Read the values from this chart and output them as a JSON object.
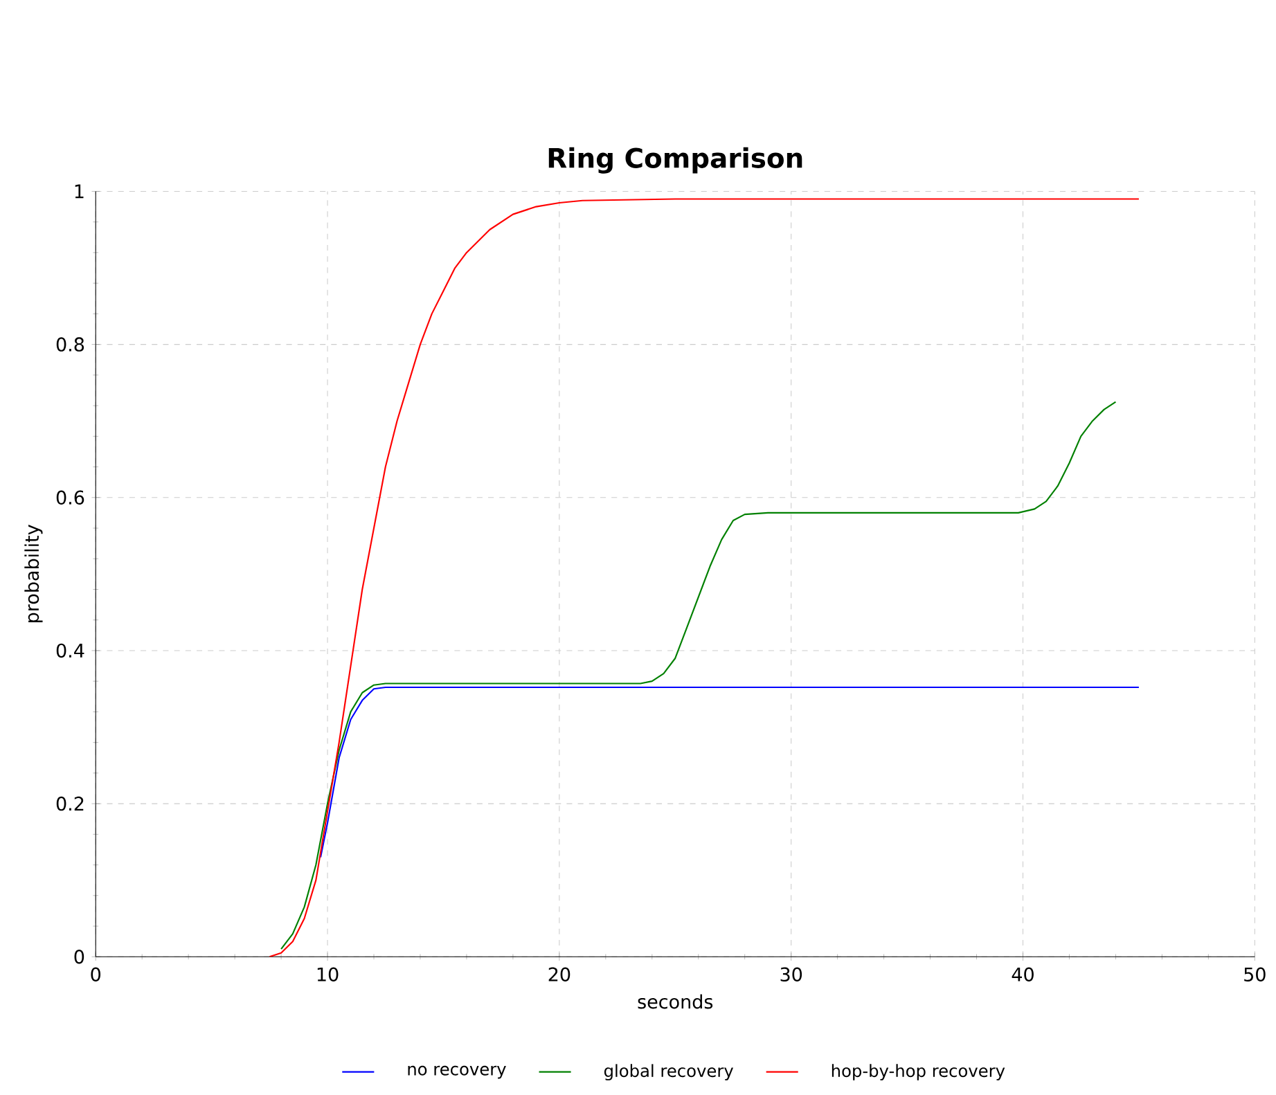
{
  "chart_data": {
    "type": "line",
    "title": "Ring Comparison",
    "xlabel": "seconds",
    "ylabel": "probability",
    "xlim": [
      0,
      50
    ],
    "ylim": [
      0,
      1
    ],
    "xticks": [
      0,
      10,
      20,
      30,
      40,
      50
    ],
    "yticks": [
      0,
      0.2,
      0.4,
      0.6,
      0.8,
      1
    ],
    "grid": true,
    "legend": "bottom",
    "marker": "none",
    "line_style": "solid",
    "series": [
      {
        "name": "no recovery",
        "color": "#0000ff",
        "x": [
          9.7,
          10,
          10.5,
          11,
          11.5,
          12,
          12.5,
          45
        ],
        "values": [
          0.13,
          0.175,
          0.26,
          0.31,
          0.335,
          0.35,
          0.352,
          0.352
        ]
      },
      {
        "name": "global recovery",
        "color": "#008000",
        "x": [
          8,
          8.5,
          9,
          9.5,
          10,
          10.5,
          11,
          11.5,
          12,
          12.5,
          23.5,
          24,
          24.5,
          25,
          25.5,
          26,
          26.5,
          27,
          27.5,
          28,
          29,
          39.8,
          40.5,
          41,
          41.5,
          42,
          42.5,
          43,
          43.5,
          44
        ],
        "values": [
          0.01,
          0.03,
          0.065,
          0.12,
          0.2,
          0.27,
          0.32,
          0.345,
          0.355,
          0.357,
          0.357,
          0.36,
          0.37,
          0.39,
          0.43,
          0.47,
          0.51,
          0.545,
          0.57,
          0.578,
          0.58,
          0.58,
          0.585,
          0.595,
          0.615,
          0.645,
          0.68,
          0.7,
          0.715,
          0.725
        ]
      },
      {
        "name": "hop-by-hop recovery",
        "color": "#ff0000",
        "x": [
          7.5,
          8,
          8.5,
          9,
          9.5,
          10,
          10.5,
          11,
          11.5,
          12,
          12.5,
          13,
          13.5,
          14,
          14.5,
          15,
          15.5,
          16,
          17,
          18,
          19,
          20,
          21,
          25,
          45
        ],
        "values": [
          0,
          0.005,
          0.02,
          0.05,
          0.1,
          0.19,
          0.28,
          0.38,
          0.48,
          0.56,
          0.64,
          0.7,
          0.75,
          0.8,
          0.84,
          0.87,
          0.9,
          0.92,
          0.95,
          0.97,
          0.98,
          0.985,
          0.988,
          0.99,
          0.99
        ]
      }
    ]
  }
}
